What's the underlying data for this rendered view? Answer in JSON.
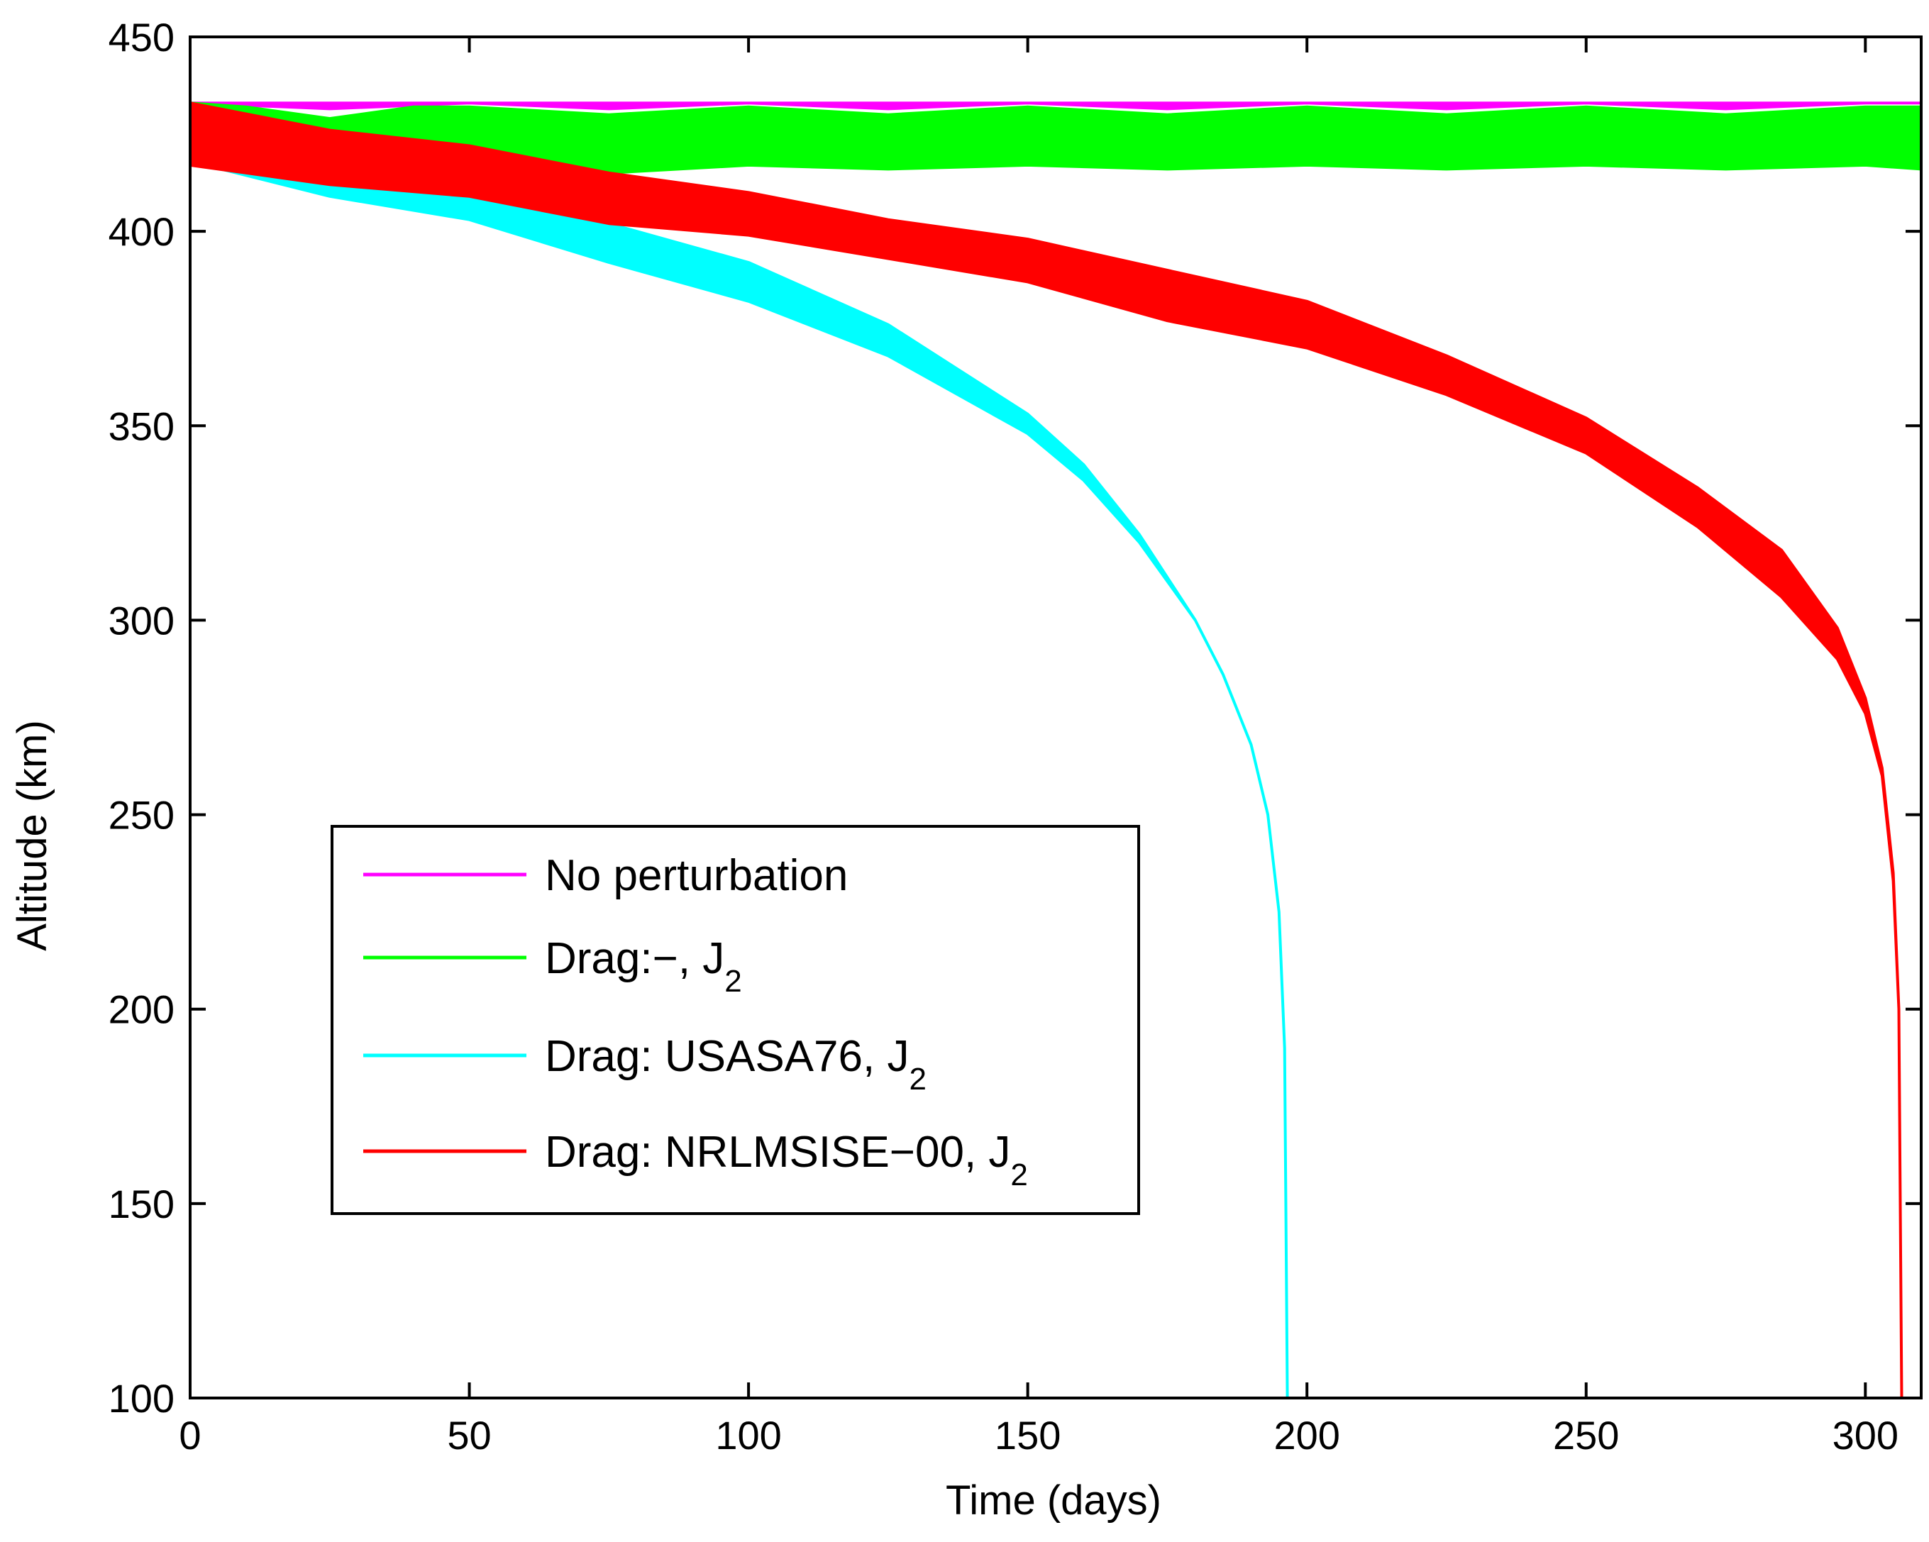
{
  "chart_data": {
    "type": "line",
    "title": "",
    "xlabel": "Time (days)",
    "ylabel": "Altitude (km)",
    "xlim": [
      0,
      310
    ],
    "ylim": [
      100,
      450
    ],
    "xticks": [
      0,
      50,
      100,
      150,
      200,
      250,
      300
    ],
    "yticks": [
      100,
      150,
      200,
      250,
      300,
      350,
      400,
      450
    ],
    "grid": false,
    "legend_position": "lower-left",
    "series": [
      {
        "name": "No perturbation",
        "legend_main": "No perturbation",
        "legend_sub": "",
        "color": "#ff00ff",
        "x": [
          0,
          25,
          50,
          75,
          100,
          125,
          150,
          175,
          200,
          225,
          250,
          275,
          300,
          310
        ],
        "upper": [
          433,
          433,
          433,
          433,
          433,
          433,
          433,
          433,
          433,
          433,
          433,
          433,
          433,
          433
        ],
        "lower": [
          433,
          431.5,
          433,
          431.5,
          433,
          431.5,
          433,
          431.5,
          433,
          431.5,
          433,
          431.5,
          433,
          433
        ]
      },
      {
        "name": "Drag:−, J2",
        "legend_main": "Drag:−, J",
        "legend_sub": "2",
        "color": "#00ff00",
        "x": [
          0,
          10,
          25,
          40,
          50,
          75,
          100,
          125,
          150,
          175,
          200,
          225,
          250,
          275,
          300,
          310
        ],
        "upper": [
          433,
          432,
          429,
          432,
          432,
          430,
          432,
          430,
          432,
          430,
          432,
          430,
          432,
          430,
          432,
          432
        ],
        "lower": [
          422,
          417,
          415,
          415,
          417,
          415,
          417,
          416,
          417,
          416,
          417,
          416,
          417,
          416,
          417,
          416
        ]
      },
      {
        "name": "Drag: USASA76, J2",
        "legend_main": "Drag: USASA76, J",
        "legend_sub": "2",
        "color": "#00ffff",
        "x": [
          0,
          25,
          50,
          75,
          100,
          125,
          150,
          160,
          170,
          180,
          185,
          190,
          193,
          195,
          196,
          196.5
        ],
        "upper": [
          418,
          413,
          409,
          402,
          392,
          376,
          353,
          340,
          322,
          300,
          286,
          268,
          250,
          225,
          190,
          100
        ],
        "lower": [
          418,
          409,
          403,
          392,
          382,
          368,
          348,
          336,
          320,
          300,
          286,
          268,
          250,
          225,
          190,
          100
        ]
      },
      {
        "name": "Drag: NRLMSISE-00, J2",
        "legend_main": "Drag: NRLMSISE−00, J",
        "legend_sub": "2",
        "color": "#ff0000",
        "x": [
          0,
          25,
          50,
          75,
          100,
          125,
          150,
          175,
          200,
          225,
          250,
          270,
          285,
          295,
          300,
          303,
          305,
          306,
          306.5
        ],
        "upper": [
          433,
          426,
          422,
          415,
          410,
          403,
          398,
          390,
          382,
          368,
          352,
          334,
          318,
          298,
          280,
          262,
          235,
          200,
          100
        ],
        "lower": [
          417,
          412,
          409,
          402,
          399,
          393,
          387,
          377,
          370,
          358,
          343,
          324,
          306,
          290,
          276,
          260,
          233,
          200,
          100
        ]
      }
    ]
  }
}
